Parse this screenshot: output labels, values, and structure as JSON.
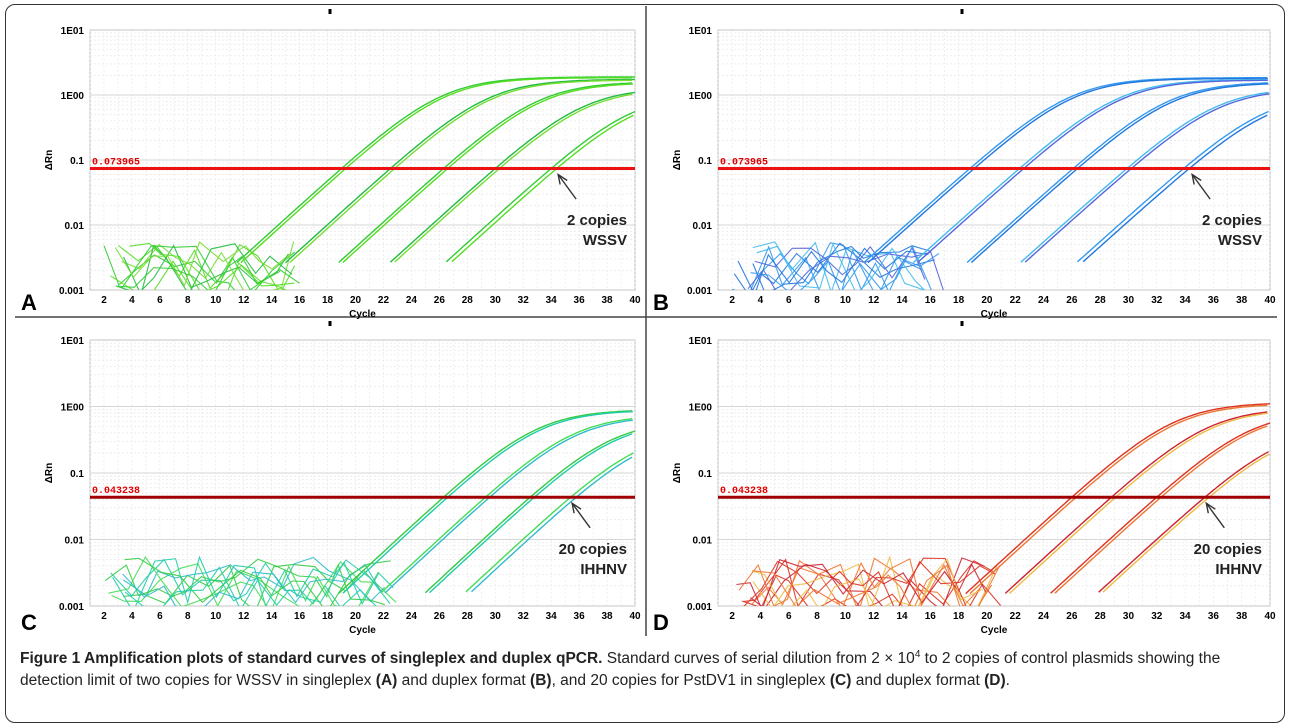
{
  "figure": {
    "caption": {
      "title": "Figure 1 Amplification plots of standard curves of singleplex and duplex qPCR.",
      "text_1": " Standard curves of serial dilution from 2 × 10",
      "exponent": "4",
      "text_2": " to 2 copies of control plasmids showing the detection limit of two copies for WSSV in singleplex ",
      "ref_a": "(A)",
      "text_3": " and duplex format ",
      "ref_b": "(B)",
      "text_4": ", and 20 copies for PstDV1 in singleplex ",
      "ref_c": "(C)",
      "text_5": " and duplex format ",
      "ref_d": "(D)",
      "text_6": "."
    }
  },
  "chart_data": [
    {
      "panel": "A",
      "type": "line",
      "xlabel": "Cycle",
      "ylabel": "ΔRn",
      "y_scale": "log",
      "ylim": [
        0.001,
        10
      ],
      "xlim": [
        1,
        40
      ],
      "xticks": [
        2,
        4,
        6,
        8,
        10,
        12,
        14,
        16,
        18,
        20,
        22,
        24,
        26,
        28,
        30,
        32,
        34,
        36,
        38,
        40
      ],
      "ytick_labels": [
        "1E01",
        "1E00",
        "0.1",
        "0.01",
        "0.001"
      ],
      "threshold": {
        "value": 0.073965,
        "label": "0.073965"
      },
      "annotation": {
        "line1": "2 copies",
        "line2": "WSSV",
        "arrow_x": 34.5,
        "arrow_y": 0.025
      },
      "series_colors": [
        "#33cc33",
        "#55dd22",
        "#22bb44",
        "#77dd33"
      ],
      "curves": [
        {
          "ct": 19.0,
          "plateau": 1.9
        },
        {
          "ct": 19.3,
          "plateau": 1.85
        },
        {
          "ct": 22.5,
          "plateau": 1.75
        },
        {
          "ct": 22.8,
          "plateau": 1.7
        },
        {
          "ct": 26.3,
          "plateau": 1.6
        },
        {
          "ct": 26.6,
          "plateau": 1.55
        },
        {
          "ct": 30.0,
          "plateau": 1.3
        },
        {
          "ct": 30.3,
          "plateau": 1.25
        },
        {
          "ct": 34.0,
          "plateau": 1.05
        },
        {
          "ct": 34.4,
          "plateau": 1.0
        }
      ],
      "noise_range": [
        2,
        16
      ]
    },
    {
      "panel": "B",
      "type": "line",
      "xlabel": "Cycle",
      "ylabel": "ΔRn",
      "y_scale": "log",
      "ylim": [
        0.001,
        10
      ],
      "xlim": [
        1,
        40
      ],
      "xticks": [
        2,
        4,
        6,
        8,
        10,
        12,
        14,
        16,
        18,
        20,
        22,
        24,
        26,
        28,
        30,
        32,
        34,
        36,
        38,
        40
      ],
      "ytick_labels": [
        "1E01",
        "1E00",
        "0.1",
        "0.01",
        "0.001"
      ],
      "threshold": {
        "value": 0.073965,
        "label": "0.073965"
      },
      "annotation": {
        "line1": "2 copies",
        "line2": "WSSV",
        "arrow_x": 34.5,
        "arrow_y": 0.025
      },
      "series_colors": [
        "#3399ee",
        "#2277dd",
        "#44bbee",
        "#5566dd"
      ],
      "curves": [
        {
          "ct": 18.8,
          "plateau": 1.85
        },
        {
          "ct": 19.1,
          "plateau": 1.8
        },
        {
          "ct": 22.3,
          "plateau": 1.75
        },
        {
          "ct": 22.6,
          "plateau": 1.7
        },
        {
          "ct": 26.1,
          "plateau": 1.6
        },
        {
          "ct": 26.4,
          "plateau": 1.55
        },
        {
          "ct": 29.9,
          "plateau": 1.3
        },
        {
          "ct": 30.2,
          "plateau": 1.25
        },
        {
          "ct": 33.9,
          "plateau": 1.05
        },
        {
          "ct": 34.3,
          "plateau": 1.0
        }
      ],
      "noise_range": [
        2,
        17
      ]
    },
    {
      "panel": "C",
      "type": "line",
      "xlabel": "Cycle",
      "ylabel": "ΔRn",
      "y_scale": "log",
      "ylim": [
        0.001,
        10
      ],
      "xlim": [
        1,
        40
      ],
      "xticks": [
        2,
        4,
        6,
        8,
        10,
        12,
        14,
        16,
        18,
        20,
        22,
        24,
        26,
        28,
        30,
        32,
        34,
        36,
        38,
        40
      ],
      "ytick_labels": [
        "1E01",
        "1E00",
        "0.1",
        "0.01",
        "0.001"
      ],
      "threshold": {
        "value": 0.043238,
        "label": "0.043238"
      },
      "annotation": {
        "line1": "20 copies",
        "line2": "IHHNV",
        "arrow_x": 35.5,
        "arrow_y": 0.015
      },
      "series_colors": [
        "#33cc44",
        "#22ccaa",
        "#44dd55",
        "#33bbcc"
      ],
      "curves": [
        {
          "ct": 26.3,
          "plateau": 0.9
        },
        {
          "ct": 26.6,
          "plateau": 0.88
        },
        {
          "ct": 29.3,
          "plateau": 0.75
        },
        {
          "ct": 29.6,
          "plateau": 0.72
        },
        {
          "ct": 32.5,
          "plateau": 0.62
        },
        {
          "ct": 32.8,
          "plateau": 0.6
        },
        {
          "ct": 35.4,
          "plateau": 0.45
        },
        {
          "ct": 35.8,
          "plateau": 0.43
        }
      ],
      "noise_range": [
        2,
        23
      ]
    },
    {
      "panel": "D",
      "type": "line",
      "xlabel": "Cycle",
      "ylabel": "ΔRn",
      "y_scale": "log",
      "ylim": [
        0.001,
        10
      ],
      "xlim": [
        1,
        40
      ],
      "xticks": [
        2,
        4,
        6,
        8,
        10,
        12,
        14,
        16,
        18,
        20,
        22,
        24,
        26,
        28,
        30,
        32,
        34,
        36,
        38,
        40
      ],
      "ytick_labels": [
        "1E01",
        "1E00",
        "0.1",
        "0.01",
        "0.001"
      ],
      "threshold": {
        "value": 0.043238,
        "label": "0.043238"
      },
      "annotation": {
        "line1": "20 copies",
        "line2": "IHHNV",
        "arrow_x": 35.5,
        "arrow_y": 0.015
      },
      "series_colors": [
        "#dd3322",
        "#ee7733",
        "#cc2233",
        "#eebb44"
      ],
      "curves": [
        {
          "ct": 26.0,
          "plateau": 1.15
        },
        {
          "ct": 26.3,
          "plateau": 1.1
        },
        {
          "ct": 28.8,
          "plateau": 0.95
        },
        {
          "ct": 29.1,
          "plateau": 0.92
        },
        {
          "ct": 32.0,
          "plateau": 0.85
        },
        {
          "ct": 32.3,
          "plateau": 0.82
        },
        {
          "ct": 35.4,
          "plateau": 0.5
        },
        {
          "ct": 35.7,
          "plateau": 0.48
        }
      ],
      "noise_range": [
        2,
        21
      ]
    }
  ]
}
